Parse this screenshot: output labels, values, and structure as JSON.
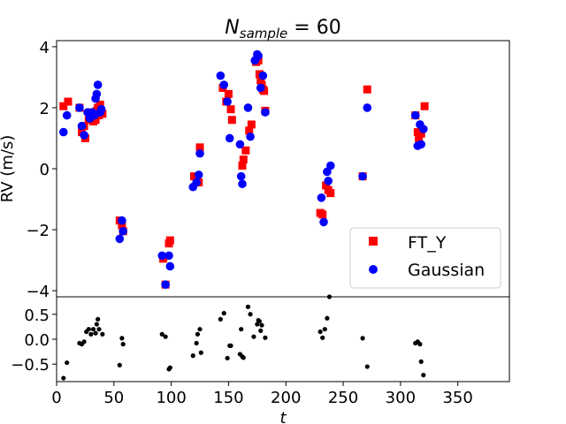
{
  "chart_data": [
    {
      "type": "scatter",
      "title": "N_sample = 60",
      "title_main": "N",
      "title_sub": "sample",
      "title_rest": " = 60",
      "ylabel": "RV (m/s)",
      "xlim": [
        0,
        395
      ],
      "ylim": [
        -4.2,
        4.2
      ],
      "yticks": [
        4,
        2,
        0,
        -2,
        -4
      ],
      "ytick_labels": [
        "4",
        "2",
        "0",
        "−2",
        "−4"
      ],
      "grid": false,
      "legend_position": "bottom-right",
      "series": [
        {
          "name": "FT_Y",
          "marker": "square",
          "color": "#ff0000",
          "points": [
            [
              6,
              2.05
            ],
            [
              10,
              2.2
            ],
            [
              20,
              2.0
            ],
            [
              22,
              1.2
            ],
            [
              24,
              1.4
            ],
            [
              25,
              1.0
            ],
            [
              28,
              1.6
            ],
            [
              30,
              1.85
            ],
            [
              32,
              1.55
            ],
            [
              34,
              1.6
            ],
            [
              35,
              1.9
            ],
            [
              36,
              2.0
            ],
            [
              37,
              1.75
            ],
            [
              38,
              2.1
            ],
            [
              40,
              1.8
            ],
            [
              55,
              -1.7
            ],
            [
              57,
              -1.85
            ],
            [
              58,
              -2.05
            ],
            [
              93,
              -2.95
            ],
            [
              95,
              -3.8
            ],
            [
              98,
              -2.45
            ],
            [
              99,
              -2.35
            ],
            [
              120,
              -0.25
            ],
            [
              124,
              -0.45
            ],
            [
              125,
              0.7
            ],
            [
              145,
              2.65
            ],
            [
              148,
              2.2
            ],
            [
              150,
              2.45
            ],
            [
              152,
              1.95
            ],
            [
              153,
              1.6
            ],
            [
              162,
              0.1
            ],
            [
              163,
              0.3
            ],
            [
              165,
              0.6
            ],
            [
              168,
              1.25
            ],
            [
              170,
              1.45
            ],
            [
              174,
              3.5
            ],
            [
              176,
              3.55
            ],
            [
              177,
              3.1
            ],
            [
              178,
              2.9
            ],
            [
              179,
              2.75
            ],
            [
              180,
              2.6
            ],
            [
              181,
              2.55
            ],
            [
              182,
              1.9
            ],
            [
              230,
              -1.45
            ],
            [
              232,
              -1.5
            ],
            [
              235,
              -0.55
            ],
            [
              237,
              -0.7
            ],
            [
              239,
              -0.8
            ],
            [
              267,
              -0.25
            ],
            [
              271,
              2.6
            ],
            [
              313,
              1.75
            ],
            [
              315,
              1.2
            ],
            [
              316,
              1.0
            ],
            [
              318,
              1.15
            ],
            [
              321,
              2.05
            ]
          ]
        },
        {
          "name": "Gaussian",
          "marker": "circle",
          "color": "#0000ff",
          "points": [
            [
              6,
              1.2
            ],
            [
              9,
              1.75
            ],
            [
              20,
              2.0
            ],
            [
              22,
              1.4
            ],
            [
              24,
              1.1
            ],
            [
              27,
              1.85
            ],
            [
              29,
              1.65
            ],
            [
              31,
              1.85
            ],
            [
              33,
              1.75
            ],
            [
              34,
              2.3
            ],
            [
              35,
              2.45
            ],
            [
              36,
              2.75
            ],
            [
              38,
              1.85
            ],
            [
              39,
              1.95
            ],
            [
              55,
              -2.3
            ],
            [
              57,
              -1.7
            ],
            [
              58,
              -2.05
            ],
            [
              92,
              -2.85
            ],
            [
              95,
              -3.8
            ],
            [
              98,
              -2.85
            ],
            [
              99,
              -3.2
            ],
            [
              119,
              -0.6
            ],
            [
              122,
              -0.45
            ],
            [
              124,
              -0.2
            ],
            [
              125,
              0.5
            ],
            [
              143,
              3.05
            ],
            [
              146,
              2.75
            ],
            [
              149,
              2.2
            ],
            [
              151,
              1.0
            ],
            [
              160,
              0.8
            ],
            [
              161,
              -0.25
            ],
            [
              162,
              -0.5
            ],
            [
              167,
              2.0
            ],
            [
              169,
              1.05
            ],
            [
              173,
              3.55
            ],
            [
              175,
              3.75
            ],
            [
              176,
              3.7
            ],
            [
              178,
              2.65
            ],
            [
              180,
              3.05
            ],
            [
              182,
              1.85
            ],
            [
              231,
              -0.95
            ],
            [
              233,
              -1.75
            ],
            [
              236,
              -0.1
            ],
            [
              237,
              -0.4
            ],
            [
              239,
              0.1
            ],
            [
              267,
              -0.25
            ],
            [
              271,
              2.0
            ],
            [
              313,
              1.75
            ],
            [
              315,
              0.75
            ],
            [
              317,
              1.45
            ],
            [
              318,
              0.8
            ],
            [
              320,
              1.3
            ]
          ]
        }
      ]
    },
    {
      "type": "scatter",
      "xlabel": "t",
      "xlim": [
        0,
        395
      ],
      "ylim": [
        -0.85,
        0.85
      ],
      "xticks": [
        0,
        50,
        100,
        150,
        200,
        250,
        300,
        350
      ],
      "xtick_labels": [
        "0",
        "50",
        "100",
        "150",
        "200",
        "250",
        "300",
        "350"
      ],
      "yticks": [
        0.5,
        0.0,
        -0.5
      ],
      "ytick_labels": [
        "0.5",
        "0.0",
        "−0.5"
      ],
      "grid": false,
      "series": [
        {
          "marker": "circle",
          "color": "#000000",
          "points": [
            [
              6,
              -0.78
            ],
            [
              9,
              -0.47
            ],
            [
              20,
              -0.08
            ],
            [
              22,
              -0.1
            ],
            [
              24,
              -0.05
            ],
            [
              26,
              0.15
            ],
            [
              28,
              0.2
            ],
            [
              30,
              0.1
            ],
            [
              32,
              0.2
            ],
            [
              34,
              0.12
            ],
            [
              35,
              0.3
            ],
            [
              36,
              0.4
            ],
            [
              37,
              0.2
            ],
            [
              40,
              0.1
            ],
            [
              55,
              -0.52
            ],
            [
              57,
              0.02
            ],
            [
              58,
              -0.1
            ],
            [
              92,
              0.1
            ],
            [
              95,
              0.05
            ],
            [
              98,
              -0.6
            ],
            [
              99,
              -0.57
            ],
            [
              119,
              -0.33
            ],
            [
              122,
              -0.08
            ],
            [
              123,
              0.1
            ],
            [
              125,
              0.2
            ],
            [
              126,
              -0.27
            ],
            [
              143,
              0.4
            ],
            [
              146,
              0.52
            ],
            [
              149,
              -0.38
            ],
            [
              151,
              -0.13
            ],
            [
              152,
              -0.13
            ],
            [
              160,
              -0.3
            ],
            [
              161,
              0.2
            ],
            [
              162,
              -0.35
            ],
            [
              163,
              -0.37
            ],
            [
              167,
              0.65
            ],
            [
              169,
              0.5
            ],
            [
              172,
              0.05
            ],
            [
              175,
              0.3
            ],
            [
              176,
              0.38
            ],
            [
              177,
              0.36
            ],
            [
              178,
              0.17
            ],
            [
              179,
              0.28
            ],
            [
              182,
              0.03
            ],
            [
              230,
              0.15
            ],
            [
              232,
              0.03
            ],
            [
              234,
              0.2
            ],
            [
              236,
              0.42
            ],
            [
              238,
              0.85
            ],
            [
              267,
              0.02
            ],
            [
              271,
              -0.55
            ],
            [
              313,
              -0.08
            ],
            [
              315,
              -0.05
            ],
            [
              317,
              -0.1
            ],
            [
              318,
              -0.45
            ],
            [
              320,
              -0.72
            ]
          ]
        }
      ]
    }
  ]
}
